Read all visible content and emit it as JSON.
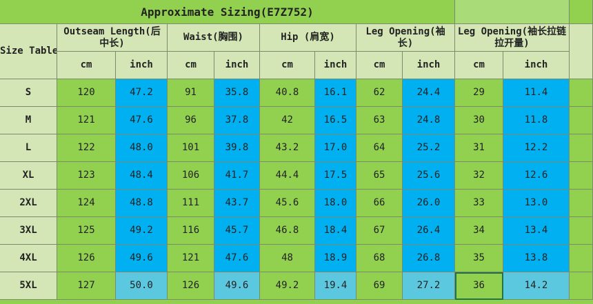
{
  "header": {
    "title": "Approximate Sizing(E7Z752)"
  },
  "table": {
    "corner": "Size Table",
    "groups": [
      "Outseam Length(后中长)",
      "Waist(胸围)",
      "Hip (肩宽)",
      "Leg Opening(袖长)",
      "Leg Opening(袖长拉链拉开量)"
    ],
    "units": [
      "cm",
      "inch",
      "cm",
      "inch",
      "cm",
      "inch",
      "cm",
      "inch",
      "cm",
      "inch"
    ],
    "rows": [
      [
        "S",
        "120",
        "47.2",
        "91",
        "35.8",
        "40.8",
        "16.1",
        "62",
        "24.4",
        "29",
        "11.4"
      ],
      [
        "M",
        "121",
        "47.6",
        "96",
        "37.8",
        "42",
        "16.5",
        "63",
        "24.8",
        "30",
        "11.8"
      ],
      [
        "L",
        "122",
        "48.0",
        "101",
        "39.8",
        "43.2",
        "17.0",
        "64",
        "25.2",
        "31",
        "12.2"
      ],
      [
        "XL",
        "123",
        "48.4",
        "106",
        "41.7",
        "44.4",
        "17.5",
        "65",
        "25.6",
        "32",
        "12.6"
      ],
      [
        "2XL",
        "124",
        "48.8",
        "111",
        "43.7",
        "45.6",
        "18.0",
        "66",
        "26.0",
        "33",
        "13.0"
      ],
      [
        "3XL",
        "125",
        "49.2",
        "116",
        "45.7",
        "46.8",
        "18.4",
        "67",
        "26.4",
        "34",
        "13.4"
      ],
      [
        "4XL",
        "126",
        "49.6",
        "121",
        "47.6",
        "48",
        "18.9",
        "68",
        "26.8",
        "35",
        "13.8"
      ],
      [
        "5XL",
        "127",
        "50.0",
        "126",
        "49.6",
        "49.2",
        "19.4",
        "69",
        "27.2",
        "36",
        "14.2"
      ]
    ]
  }
}
